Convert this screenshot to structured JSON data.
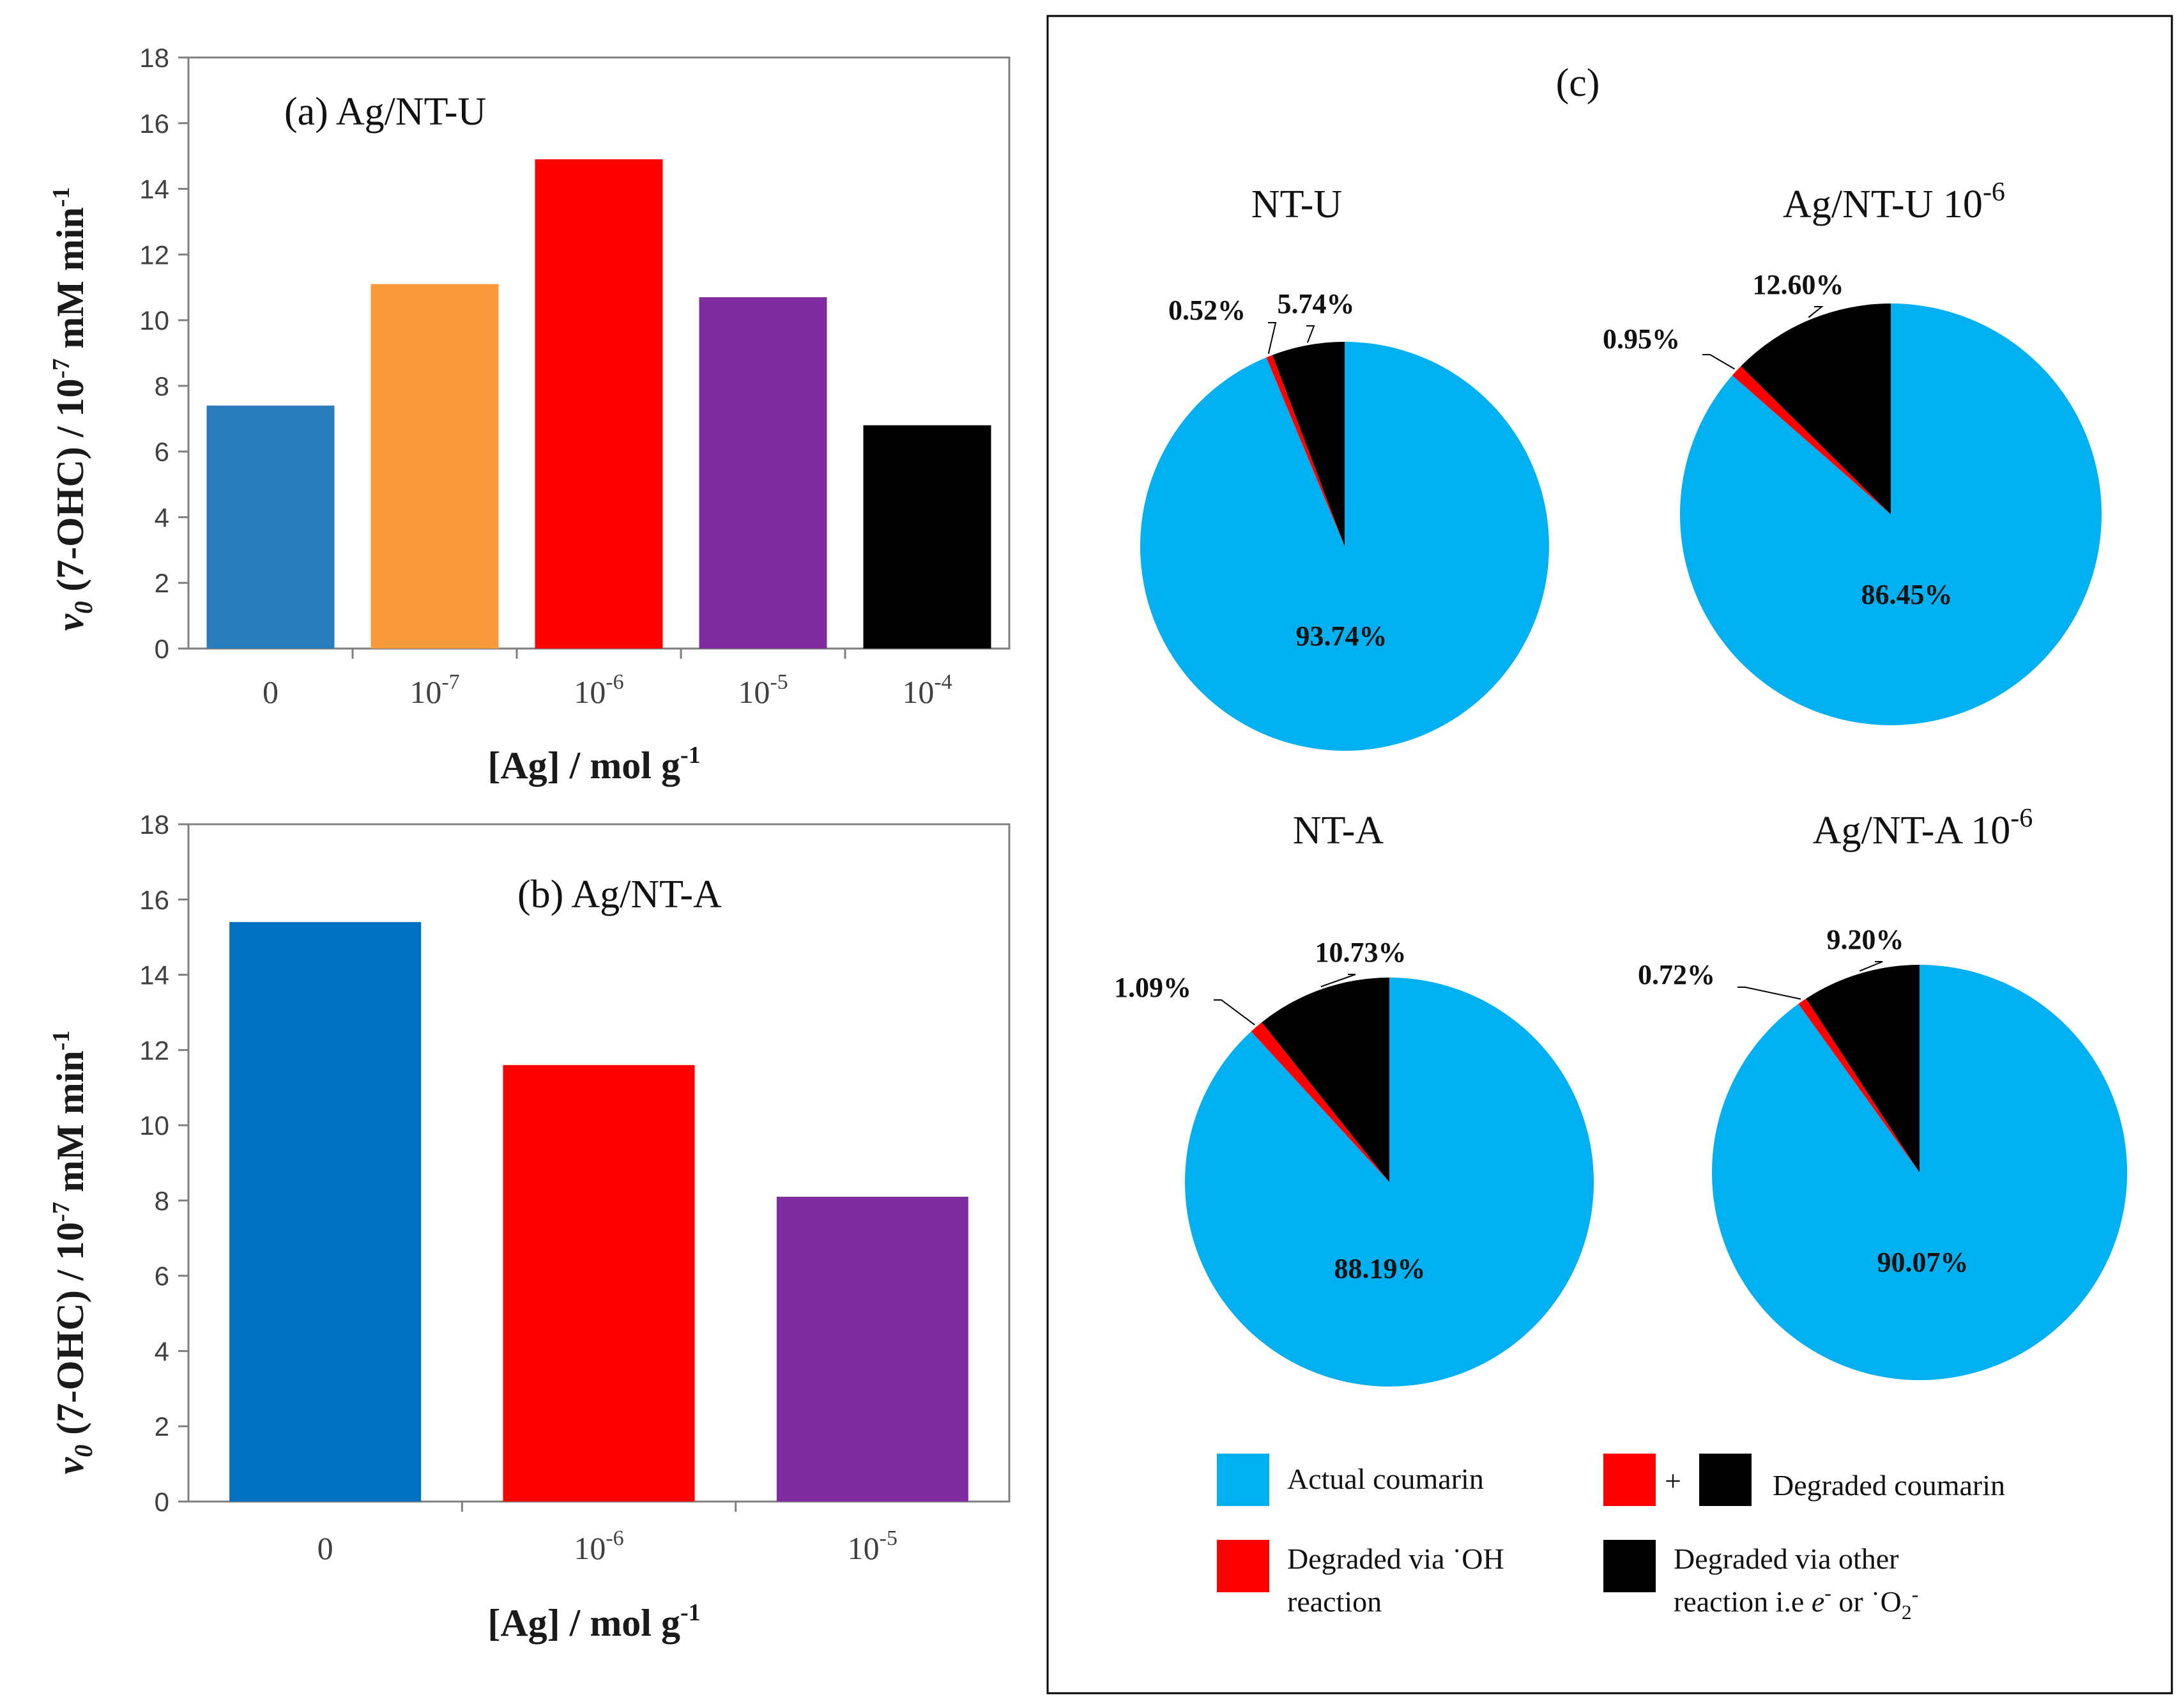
{
  "chart_data": [
    {
      "id": "a",
      "type": "bar",
      "title": "(a) Ag/NT-U",
      "ylabel_var": "v",
      "ylabel_sub": "0",
      "ylabel_mid": " (7-OHC) / 10",
      "ylabel_exp": "-7",
      "ylabel_unit": " mM min",
      "ylabel_unit_exp": "-1",
      "xlabel_main": "[Ag] / mol g",
      "xlabel_exp": "-1",
      "ylim": [
        0,
        18
      ],
      "yticks": [
        "0",
        "2",
        "4",
        "6",
        "8",
        "10",
        "12",
        "14",
        "16",
        "18"
      ],
      "categories": [
        {
          "base": "0",
          "exp": ""
        },
        {
          "base": "10",
          "exp": "-7"
        },
        {
          "base": "10",
          "exp": "-6"
        },
        {
          "base": "10",
          "exp": "-5"
        },
        {
          "base": "10",
          "exp": "-4"
        }
      ],
      "values": [
        7.4,
        11.1,
        14.9,
        10.7,
        6.8
      ],
      "colors": [
        "#2A7DBC",
        "#F99A3C",
        "#FF0000",
        "#7F2C9F",
        "#000000"
      ]
    },
    {
      "id": "b",
      "type": "bar",
      "title": "(b) Ag/NT-A",
      "ylabel_var": "v",
      "ylabel_sub": "0",
      "ylabel_mid": " (7-OHC) / 10",
      "ylabel_exp": "-7",
      "ylabel_unit": " mM min",
      "ylabel_unit_exp": "-1",
      "xlabel_main": "[Ag] / mol g",
      "xlabel_exp": "-1",
      "ylim": [
        0,
        18
      ],
      "yticks": [
        "0",
        "2",
        "4",
        "6",
        "8",
        "10",
        "12",
        "14",
        "16",
        "18"
      ],
      "categories": [
        {
          "base": "0",
          "exp": ""
        },
        {
          "base": "10",
          "exp": "-6"
        },
        {
          "base": "10",
          "exp": "-5"
        }
      ],
      "values": [
        15.4,
        11.6,
        8.1
      ],
      "colors": [
        "#0070C0",
        "#FF0000",
        "#7F2C9F"
      ]
    },
    {
      "id": "c",
      "type": "pie",
      "panel_label": "(c)",
      "pies": [
        {
          "title": "NT-U",
          "title_exp": "",
          "values": [
            93.74,
            0.52,
            5.74
          ],
          "labels": [
            "93.74%",
            "0.52%",
            "5.74%"
          ]
        },
        {
          "title": "Ag/NT-U  10",
          "title_exp": "-6",
          "values": [
            86.45,
            0.95,
            12.6
          ],
          "labels": [
            "86.45%",
            "0.95%",
            "12.60%"
          ]
        },
        {
          "title": "NT-A",
          "title_exp": "",
          "values": [
            88.19,
            1.09,
            10.73
          ],
          "labels": [
            "88.19%",
            "1.09%",
            "10.73%"
          ]
        },
        {
          "title": "Ag/NT-A  10",
          "title_exp": "-6",
          "values": [
            90.07,
            0.72,
            9.2
          ],
          "labels": [
            "90.07%",
            "0.72%",
            "9.20%"
          ]
        }
      ],
      "slice_colors": [
        "#00B0F0",
        "#FF0000",
        "#000000"
      ],
      "legend": {
        "actual": "Actual coumarin",
        "plus": "+",
        "degraded": "Degraded coumarin",
        "oh_line1": "Degraded via ˙OH",
        "oh_line2": "reaction",
        "other_line1": "Degraded via other",
        "other_line2_a": "reaction i.e ",
        "other_line2_e": "e",
        "other_line2_esup": "-",
        "other_line2_b": " or ˙O",
        "other_line2_sub": "2",
        "other_line2_sup": "-"
      }
    }
  ]
}
